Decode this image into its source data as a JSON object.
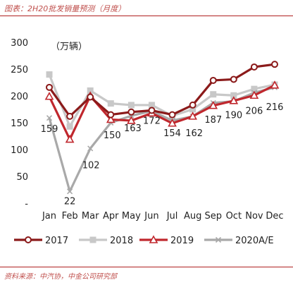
{
  "page": {
    "title": "图表：2H20批发销量预测（月度）",
    "source": "资料来源：中汽协，中金公司研究部"
  },
  "chart_data": {
    "type": "line",
    "unit_label": "（万辆）",
    "categories": [
      "Jan",
      "Feb",
      "Mar",
      "Apr",
      "May",
      "Jun",
      "Jul",
      "Aug",
      "Sep",
      "Oct",
      "Nov",
      "Dec"
    ],
    "y_ticks": [
      "300",
      "250",
      "200",
      "150",
      "100",
      "50",
      "-"
    ],
    "ylim": [
      0,
      300
    ],
    "grid": false,
    "legend_position": "bottom",
    "series": [
      {
        "name": "2017",
        "color": "#8b1a1a",
        "marker": "circle",
        "values": [
          216,
          162,
          198,
          165,
          170,
          173,
          165,
          183,
          229,
          231,
          254,
          259
        ]
      },
      {
        "name": "2018",
        "color": "#c8c8c8",
        "marker": "square",
        "values": [
          240,
          143,
          210,
          186,
          183,
          183,
          163,
          175,
          203,
          201,
          213,
          221
        ]
      },
      {
        "name": "2019",
        "color": "#c0272d",
        "marker": "triangle",
        "values": [
          199,
          119,
          200,
          156,
          154,
          168,
          149,
          162,
          182,
          191,
          201,
          220
        ]
      },
      {
        "name": "2020A/E",
        "color": "#a9a9a9",
        "marker": "cross",
        "values": [
          159,
          22,
          102,
          150,
          163,
          172,
          154,
          162,
          187,
          190,
          206,
          216
        ]
      }
    ],
    "data_labels": {
      "series": "2020A/E",
      "labels": [
        "159",
        "22",
        "102",
        "150",
        "163",
        "172",
        "154",
        "162",
        "187",
        "190",
        "206",
        "216"
      ]
    }
  }
}
